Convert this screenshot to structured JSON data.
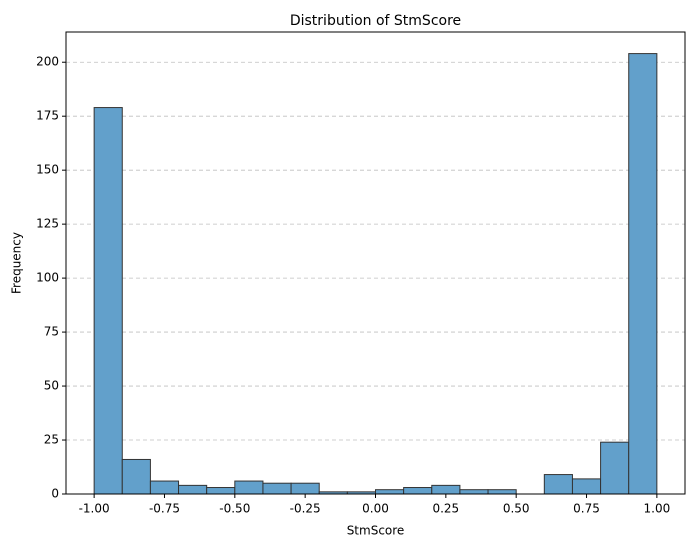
{
  "chart_data": {
    "type": "histogram",
    "title": "Distribution of StmScore",
    "xlabel": "StmScore",
    "ylabel": "Frequency",
    "bins": [
      -1.0,
      -0.9,
      -0.8,
      -0.7,
      -0.6,
      -0.5,
      -0.4,
      -0.3,
      -0.2,
      -0.1,
      0.0,
      0.1,
      0.2,
      0.3,
      0.4,
      0.5,
      0.6,
      0.7,
      0.8,
      0.9,
      1.0
    ],
    "values": [
      179,
      16,
      6,
      4,
      3,
      6,
      5,
      5,
      1,
      1,
      2,
      3,
      4,
      2,
      2,
      0,
      9,
      7,
      24,
      204
    ],
    "color": "#62a0cb",
    "edgecolor": "#333333",
    "xlim": [
      -1.1,
      1.1
    ],
    "ylim": [
      0,
      214
    ],
    "xticks": [
      {
        "value": -1,
        "label": "-1.00"
      },
      {
        "value": -0.75,
        "label": "-0.75"
      },
      {
        "value": -0.5,
        "label": "-0.50"
      },
      {
        "value": -0.25,
        "label": "-0.25"
      },
      {
        "value": 0,
        "label": "0.00"
      },
      {
        "value": 0.25,
        "label": "0.25"
      },
      {
        "value": 0.5,
        "label": "0.50"
      },
      {
        "value": 0.75,
        "label": "0.75"
      },
      {
        "value": 1,
        "label": "1.00"
      }
    ],
    "yticks": [
      0,
      25,
      50,
      75,
      100,
      125,
      150,
      175,
      200
    ],
    "grid": "y"
  }
}
